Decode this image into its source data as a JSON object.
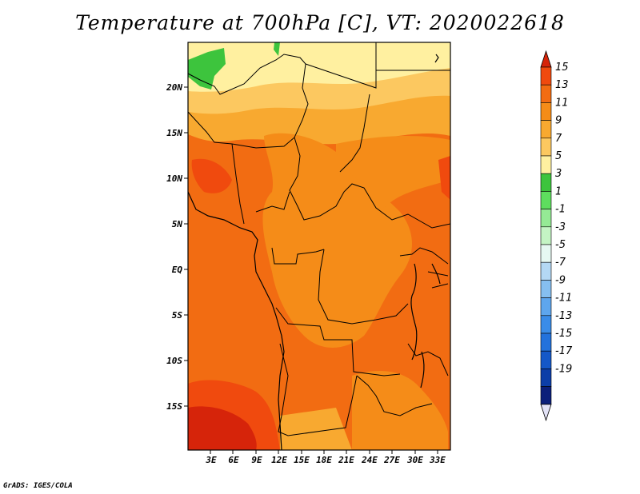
{
  "title": "Temperature at 700hPa [C], VT: 2020022618",
  "credit": "GrADS: IGES/COLA",
  "map": {
    "lat_labels": [
      "20N",
      "15N",
      "10N",
      "5N",
      "EQ",
      "5S",
      "10S",
      "15S"
    ],
    "lon_labels": [
      "3E",
      "6E",
      "9E",
      "12E",
      "15E",
      "18E",
      "21E",
      "24E",
      "27E",
      "30E",
      "33E"
    ]
  },
  "colorbar": {
    "labels": [
      "15",
      "13",
      "11",
      "9",
      "7",
      "5",
      "3",
      "1",
      "-1",
      "-3",
      "-5",
      "-7",
      "-9",
      "-11",
      "-13",
      "-15",
      "-17",
      "-19"
    ],
    "colors": [
      "#d6240a",
      "#f04a0e",
      "#f26c12",
      "#f58c18",
      "#f8a930",
      "#fcc860",
      "#fff0a0",
      "#3dc43d",
      "#5ede5e",
      "#95ea95",
      "#c4f4c4",
      "#e6f8f2",
      "#b4d8f4",
      "#86bff0",
      "#5ea6ee",
      "#3a8ce8",
      "#2372dc",
      "#1558c8",
      "#0c3ea8",
      "#0b1f7a",
      "#e2e2f6"
    ]
  }
}
